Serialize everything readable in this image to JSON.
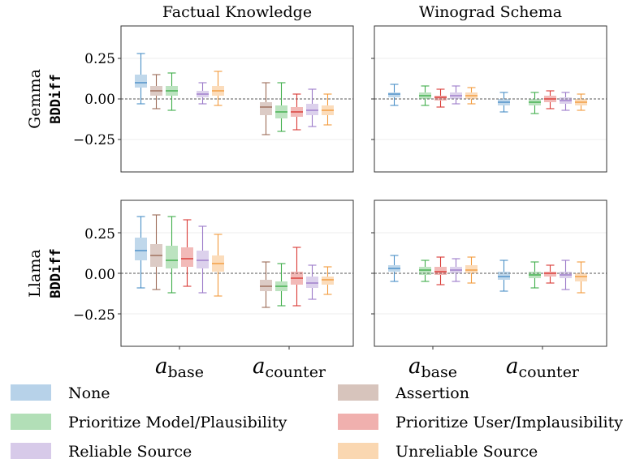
{
  "chart_data": {
    "type": "box",
    "columns": [
      "Factual Knowledge",
      "Winograd Schema"
    ],
    "rows": [
      {
        "model": "Gemma",
        "metric": "BDDiff"
      },
      {
        "model": "Llama",
        "metric": "BDDiff"
      }
    ],
    "ylim": [
      -0.45,
      0.45
    ],
    "yticks": [
      0.25,
      0.0,
      -0.25
    ],
    "ytick_labels": [
      "0.25",
      "0.00",
      "−0.25"
    ],
    "groups": [
      {
        "italic": "a",
        "sub": "base"
      },
      {
        "italic": "a",
        "sub": "counter"
      }
    ],
    "legend": [
      {
        "label": "None",
        "color": "#4a8fc7"
      },
      {
        "label": "Assertion",
        "color": "#9c6b58"
      },
      {
        "label": "Prioritize Model/Plausibility",
        "color": "#3fae4a"
      },
      {
        "label": "Prioritize User/Implausibility",
        "color": "#d93a35"
      },
      {
        "label": "Reliable Source",
        "color": "#9c7ac9"
      },
      {
        "label": "Unreliable Source",
        "color": "#f39a3c"
      }
    ],
    "panels": [
      {
        "name": "gemma-factual",
        "row": 0,
        "col": 0,
        "groups": [
          [
            [
              0,
              -0.03,
              0.07,
              0.1,
              0.15,
              0.28
            ],
            [
              1,
              -0.06,
              0.02,
              0.05,
              0.08,
              0.15
            ],
            [
              2,
              -0.07,
              0.02,
              0.05,
              0.08,
              0.16
            ],
            [
              4,
              -0.03,
              0.01,
              0.03,
              0.05,
              0.1
            ],
            [
              5,
              -0.04,
              0.02,
              0.05,
              0.08,
              0.17
            ]
          ],
          [
            [
              1,
              -0.22,
              -0.1,
              -0.05,
              -0.02,
              0.1
            ],
            [
              2,
              -0.2,
              -0.12,
              -0.08,
              -0.04,
              0.1
            ],
            [
              3,
              -0.19,
              -0.11,
              -0.08,
              -0.05,
              0.03
            ],
            [
              4,
              -0.17,
              -0.1,
              -0.07,
              -0.03,
              0.06
            ],
            [
              5,
              -0.16,
              -0.1,
              -0.07,
              -0.04,
              0.03
            ]
          ]
        ]
      },
      {
        "name": "gemma-winograd",
        "row": 0,
        "col": 1,
        "groups": [
          [
            [
              0,
              -0.04,
              0.01,
              0.03,
              0.04,
              0.09
            ],
            [
              2,
              -0.04,
              0.0,
              0.02,
              0.04,
              0.08
            ],
            [
              3,
              -0.05,
              -0.01,
              0.01,
              0.02,
              0.06
            ],
            [
              4,
              -0.03,
              0.0,
              0.02,
              0.04,
              0.08
            ],
            [
              5,
              -0.03,
              0.0,
              0.02,
              0.04,
              0.07
            ]
          ],
          [
            [
              0,
              -0.08,
              -0.04,
              -0.02,
              0.0,
              0.04
            ],
            [
              2,
              -0.09,
              -0.04,
              -0.02,
              0.0,
              0.04
            ],
            [
              3,
              -0.06,
              -0.02,
              0.0,
              0.02,
              0.05
            ],
            [
              4,
              -0.07,
              -0.03,
              -0.01,
              0.01,
              0.04
            ],
            [
              5,
              -0.07,
              -0.04,
              -0.02,
              0.0,
              0.03
            ]
          ]
        ]
      },
      {
        "name": "llama-factual",
        "row": 1,
        "col": 0,
        "groups": [
          [
            [
              0,
              -0.09,
              0.08,
              0.14,
              0.22,
              0.35
            ],
            [
              1,
              -0.1,
              0.04,
              0.11,
              0.18,
              0.36
            ],
            [
              2,
              -0.12,
              0.03,
              0.08,
              0.17,
              0.35
            ],
            [
              3,
              -0.08,
              0.04,
              0.09,
              0.16,
              0.33
            ],
            [
              4,
              -0.12,
              0.03,
              0.08,
              0.14,
              0.29
            ],
            [
              5,
              -0.14,
              0.01,
              0.06,
              0.11,
              0.24
            ]
          ],
          [
            [
              1,
              -0.21,
              -0.11,
              -0.08,
              -0.04,
              0.07
            ],
            [
              2,
              -0.2,
              -0.11,
              -0.08,
              -0.05,
              0.06
            ],
            [
              3,
              -0.2,
              -0.07,
              -0.03,
              0.01,
              0.16
            ],
            [
              4,
              -0.16,
              -0.09,
              -0.06,
              -0.02,
              0.05
            ],
            [
              5,
              -0.13,
              -0.07,
              -0.04,
              -0.02,
              0.04
            ]
          ]
        ]
      },
      {
        "name": "llama-winograd",
        "row": 1,
        "col": 1,
        "groups": [
          [
            [
              0,
              -0.05,
              0.01,
              0.03,
              0.05,
              0.11
            ],
            [
              2,
              -0.05,
              -0.01,
              0.02,
              0.04,
              0.08
            ],
            [
              3,
              -0.07,
              -0.01,
              0.01,
              0.04,
              0.1
            ],
            [
              4,
              -0.05,
              0.0,
              0.02,
              0.04,
              0.09
            ],
            [
              5,
              -0.06,
              0.0,
              0.02,
              0.05,
              0.1
            ]
          ],
          [
            [
              0,
              -0.11,
              -0.04,
              -0.02,
              0.01,
              0.08
            ],
            [
              2,
              -0.09,
              -0.03,
              -0.01,
              0.01,
              0.07
            ],
            [
              3,
              -0.06,
              -0.02,
              0.0,
              0.01,
              0.05
            ],
            [
              4,
              -0.1,
              -0.03,
              -0.01,
              0.01,
              0.08
            ],
            [
              5,
              -0.12,
              -0.05,
              -0.02,
              0.0,
              0.07
            ]
          ]
        ]
      }
    ]
  }
}
